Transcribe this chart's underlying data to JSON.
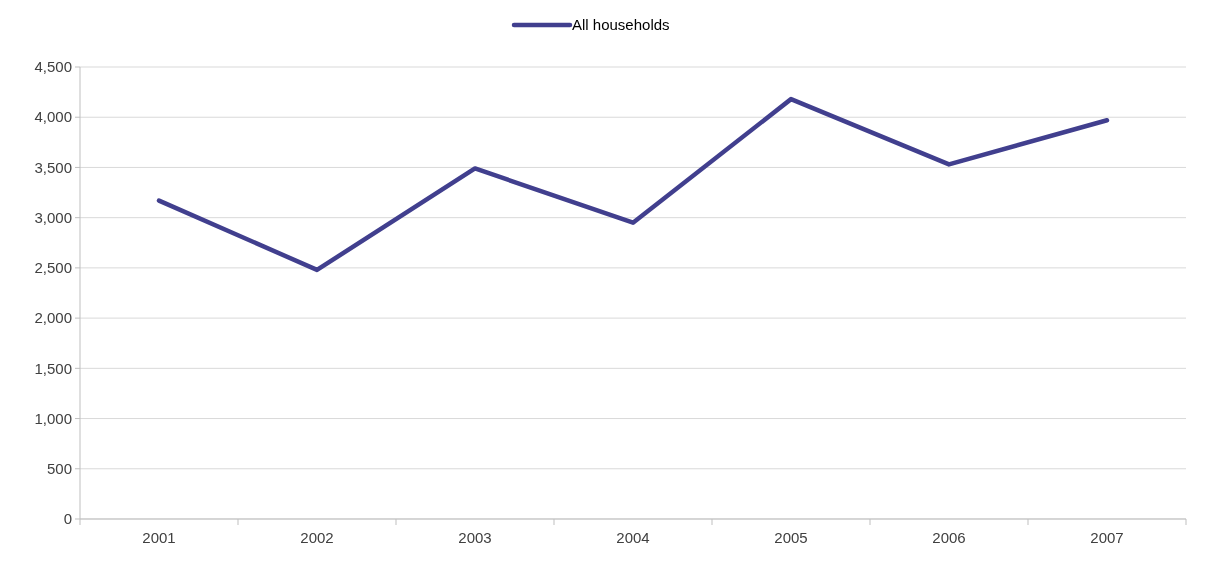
{
  "chart_data": {
    "type": "line",
    "categories": [
      "2001",
      "2002",
      "2003",
      "2004",
      "2005",
      "2006",
      "2007"
    ],
    "series": [
      {
        "name": "All households",
        "color": "#413f8e",
        "values": [
          3170,
          2480,
          3490,
          2950,
          4180,
          3530,
          3970
        ]
      }
    ],
    "ylim": [
      0,
      4500
    ],
    "yticks": [
      {
        "value": 0,
        "label": "0"
      },
      {
        "value": 500,
        "label": "500"
      },
      {
        "value": 1000,
        "label": "1,000"
      },
      {
        "value": 1500,
        "label": "1,500"
      },
      {
        "value": 2000,
        "label": "2,000"
      },
      {
        "value": 2500,
        "label": "2,500"
      },
      {
        "value": 3000,
        "label": "3,000"
      },
      {
        "value": 3500,
        "label": "3,500"
      },
      {
        "value": 4000,
        "label": "4,000"
      },
      {
        "value": 4500,
        "label": "4,500"
      }
    ],
    "grid": "y",
    "legend": "top",
    "marker": "none",
    "line_style": "solid"
  }
}
